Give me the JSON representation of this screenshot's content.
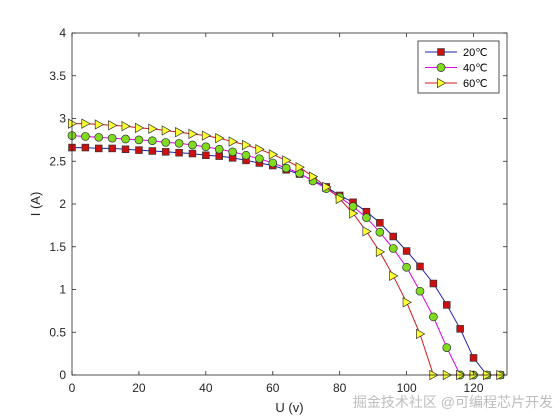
{
  "chart_data": {
    "type": "line",
    "xlabel": "U (v)",
    "ylabel": "I (A)",
    "xlim": [
      0,
      130
    ],
    "ylim": [
      0,
      4
    ],
    "x_ticks": [
      0,
      20,
      40,
      60,
      80,
      100,
      120
    ],
    "y_ticks": [
      0,
      0.5,
      1,
      1.5,
      2,
      2.5,
      3,
      3.5,
      4
    ],
    "grid": false,
    "legend_position": "top-right",
    "series": [
      {
        "name": "20℃",
        "color": "#1f1fa8",
        "marker": "square",
        "marker_color": "#cc1010",
        "x": [
          0,
          4,
          8,
          12,
          16,
          20,
          24,
          28,
          32,
          36,
          40,
          44,
          48,
          52,
          56,
          60,
          64,
          68,
          72,
          76,
          80,
          84,
          88,
          92,
          96,
          100,
          104,
          108,
          112,
          116,
          120,
          124,
          128
        ],
        "y": [
          2.66,
          2.66,
          2.65,
          2.65,
          2.64,
          2.63,
          2.62,
          2.61,
          2.6,
          2.59,
          2.57,
          2.56,
          2.54,
          2.51,
          2.48,
          2.45,
          2.4,
          2.35,
          2.28,
          2.2,
          2.1,
          2.02,
          1.91,
          1.78,
          1.62,
          1.45,
          1.27,
          1.07,
          0.82,
          0.54,
          0.2,
          0,
          0
        ]
      },
      {
        "name": "40℃",
        "color": "#e000e0",
        "marker": "circle",
        "marker_color": "#7fdc1f",
        "x": [
          0,
          4,
          8,
          12,
          16,
          20,
          24,
          28,
          32,
          36,
          40,
          44,
          48,
          52,
          56,
          60,
          64,
          68,
          72,
          76,
          80,
          84,
          88,
          92,
          96,
          100,
          104,
          108,
          112,
          116,
          120,
          124,
          128
        ],
        "y": [
          2.8,
          2.79,
          2.78,
          2.77,
          2.76,
          2.75,
          2.74,
          2.72,
          2.71,
          2.69,
          2.67,
          2.64,
          2.61,
          2.57,
          2.53,
          2.48,
          2.42,
          2.36,
          2.27,
          2.18,
          2.08,
          1.97,
          1.84,
          1.67,
          1.48,
          1.26,
          0.98,
          0.68,
          0.32,
          0,
          0,
          0,
          0
        ]
      },
      {
        "name": "60℃",
        "color": "#d01818",
        "marker": "triangle-right",
        "marker_color": "#ffff33",
        "x": [
          0,
          4,
          8,
          12,
          16,
          20,
          24,
          28,
          32,
          36,
          40,
          44,
          48,
          52,
          56,
          60,
          64,
          68,
          72,
          76,
          80,
          84,
          88,
          92,
          96,
          100,
          104,
          108,
          112,
          116,
          120,
          124,
          128
        ],
        "y": [
          2.94,
          2.94,
          2.93,
          2.92,
          2.91,
          2.89,
          2.88,
          2.86,
          2.84,
          2.82,
          2.8,
          2.77,
          2.73,
          2.69,
          2.64,
          2.58,
          2.51,
          2.43,
          2.32,
          2.2,
          2.06,
          1.89,
          1.68,
          1.44,
          1.16,
          0.85,
          0.48,
          0,
          0,
          0,
          0,
          0,
          0
        ]
      }
    ]
  },
  "watermark": "掘金技术社区 @可编程芯片开发"
}
